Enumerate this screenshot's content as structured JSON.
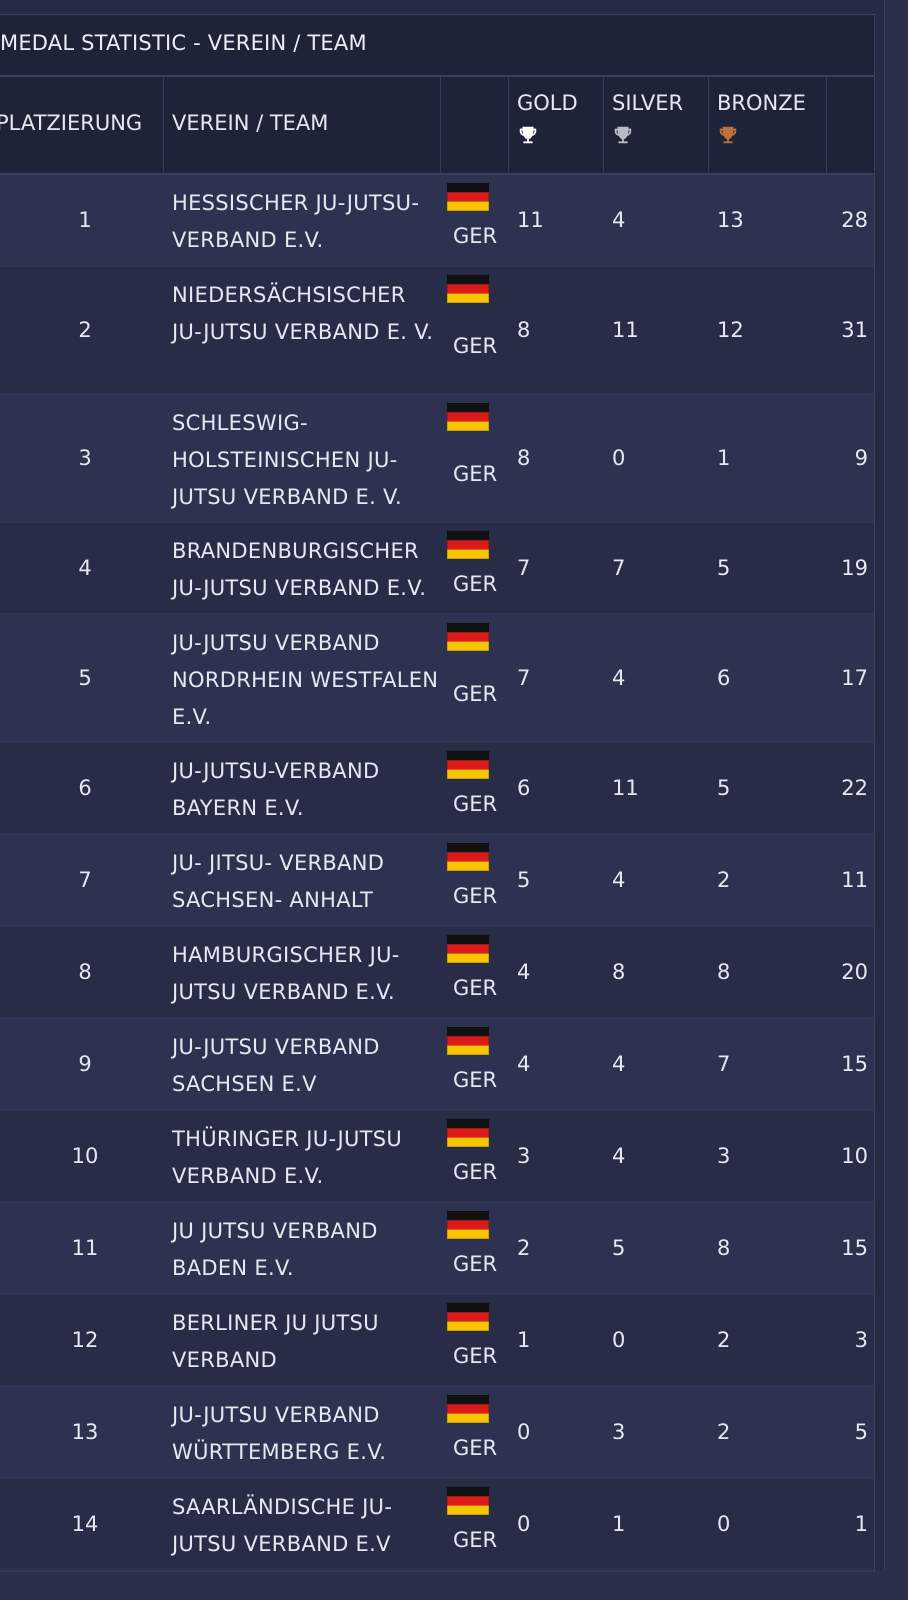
{
  "title": "MEDAL STATISTIC - VEREIN / TEAM",
  "headers": {
    "rank": "PLATZIERUNG",
    "team": "VEREIN / TEAM",
    "gold": "GOLD",
    "silver": "SILVER",
    "bronze": "BRONZE"
  },
  "colors": {
    "gold_icon": "#ffffff",
    "silver_icon": "#b9bcc6",
    "bronze_icon": "#c0703d"
  },
  "rows": [
    {
      "rank": "1",
      "team": "HESSISCHER JU-JUTSU-VERBAND E.V.",
      "country": "GER",
      "gold": "11",
      "silver": "4",
      "bronze": "13",
      "total": "28"
    },
    {
      "rank": "2",
      "team": "NIEDERSÄCHSISCHER JU-JUTSU VERBAND E. V.",
      "country": "GER",
      "gold": "8",
      "silver": "11",
      "bronze": "12",
      "total": "31"
    },
    {
      "rank": "3",
      "team": "SCHLESWIG-HOLSTEINISCHEN JU-JUTSU VERBAND E. V.",
      "country": "GER",
      "gold": "8",
      "silver": "0",
      "bronze": "1",
      "total": "9"
    },
    {
      "rank": "4",
      "team": "BRANDENBURGISCHER JU-JUTSU VERBAND E.V.",
      "country": "GER",
      "gold": "7",
      "silver": "7",
      "bronze": "5",
      "total": "19"
    },
    {
      "rank": "5",
      "team": "JU-JUTSU VERBAND NORDRHEIN WESTFALEN E.V.",
      "country": "GER",
      "gold": "7",
      "silver": "4",
      "bronze": "6",
      "total": "17"
    },
    {
      "rank": "6",
      "team": "JU-JUTSU-VERBAND BAYERN E.V.",
      "country": "GER",
      "gold": "6",
      "silver": "11",
      "bronze": "5",
      "total": "22"
    },
    {
      "rank": "7",
      "team": "JU- JITSU- VERBAND SACHSEN- ANHALT",
      "country": "GER",
      "gold": "5",
      "silver": "4",
      "bronze": "2",
      "total": "11"
    },
    {
      "rank": "8",
      "team": "HAMBURGISCHER JU-JUTSU VERBAND E.V.",
      "country": "GER",
      "gold": "4",
      "silver": "8",
      "bronze": "8",
      "total": "20"
    },
    {
      "rank": "9",
      "team": "JU-JUTSU VERBAND SACHSEN E.V",
      "country": "GER",
      "gold": "4",
      "silver": "4",
      "bronze": "7",
      "total": "15"
    },
    {
      "rank": "10",
      "team": "THÜRINGER JU-JUTSU VERBAND E.V.",
      "country": "GER",
      "gold": "3",
      "silver": "4",
      "bronze": "3",
      "total": "10"
    },
    {
      "rank": "11",
      "team": "JU JUTSU VERBAND BADEN E.V.",
      "country": "GER",
      "gold": "2",
      "silver": "5",
      "bronze": "8",
      "total": "15"
    },
    {
      "rank": "12",
      "team": "BERLINER JU JUTSU VERBAND",
      "country": "GER",
      "gold": "1",
      "silver": "0",
      "bronze": "2",
      "total": "3"
    },
    {
      "rank": "13",
      "team": "JU-JUTSU VERBAND WÜRTTEMBERG E.V.",
      "country": "GER",
      "gold": "0",
      "silver": "3",
      "bronze": "2",
      "total": "5"
    },
    {
      "rank": "14",
      "team": "SAARLÄNDISCHE JU-JUTSU VERBAND E.V",
      "country": "GER",
      "gold": "0",
      "silver": "1",
      "bronze": "0",
      "total": "1"
    }
  ]
}
